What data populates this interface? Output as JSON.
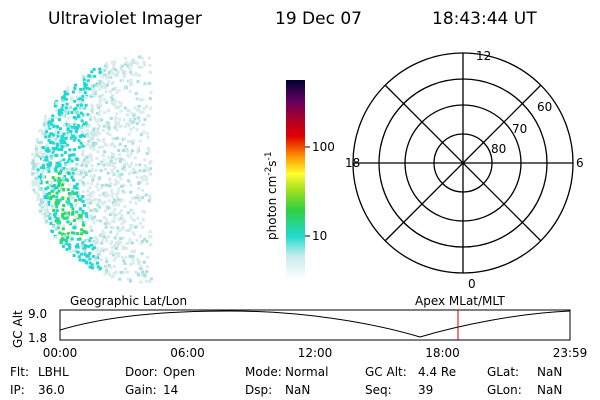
{
  "header": {
    "title": "Ultraviolet Imager",
    "date": "19 Dec 07",
    "time": "18:43:44 UT"
  },
  "colorbar": {
    "label": {
      "unit1": "photon cm",
      "exp1": "-2",
      "unit2": "s",
      "exp2": "-1"
    },
    "ticks": [
      "100",
      "10"
    ]
  },
  "polar": {
    "mlt_labels": [
      "12",
      "18",
      "6",
      "0"
    ],
    "lat_labels": [
      "60",
      "70",
      "80"
    ]
  },
  "timeline": {
    "axis_label": "GC Alt",
    "y_labels": [
      "9.0",
      "1.8"
    ],
    "left_title": "Geographic Lat/Lon",
    "right_title": "Apex MLat/MLT",
    "x_labels": [
      "00:00",
      "06:00",
      "12:00",
      "18:00",
      "23:59"
    ]
  },
  "info": {
    "rows": [
      [
        [
          "Flt:",
          "LBHL"
        ],
        [
          "Door:",
          "Open"
        ],
        [
          "Mode:",
          "Normal"
        ],
        [
          "GC Alt:",
          "4.4 Re"
        ],
        [
          "GLat:",
          "NaN"
        ]
      ],
      [
        [
          "IP:",
          "36.0"
        ],
        [
          "Gain:",
          "14"
        ],
        [
          "Dsp:",
          "NaN"
        ],
        [
          "Seq:",
          "39"
        ],
        [
          "GLon:",
          "NaN"
        ]
      ]
    ]
  }
}
